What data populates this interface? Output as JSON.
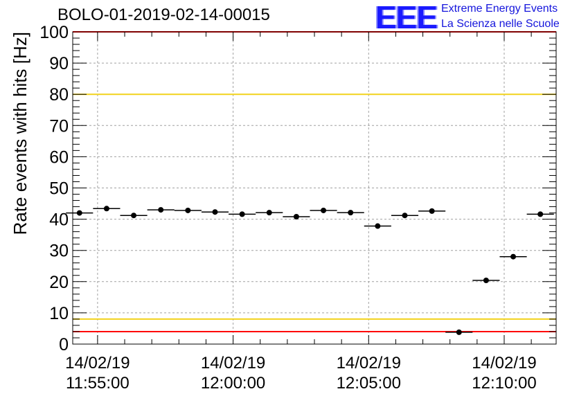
{
  "title": "BOLO-01-2019-02-14-00015",
  "logo": {
    "mark": "EEE",
    "line1": "Extreme Energy Events",
    "line2": "La Scienza nelle Scuole"
  },
  "colors": {
    "axis": "#000000",
    "grid": "#a0a0a0",
    "marker": "#000000",
    "red_limit": "#ff0000",
    "yellow_limit": "#f2d21b",
    "logo": "#1a1aff"
  },
  "chart_data": {
    "type": "scatter",
    "title": "BOLO-01-2019-02-14-00015",
    "ylabel": "Rate events with hits [Hz]",
    "xlabel": "",
    "ylim": [
      0,
      100
    ],
    "yticks": [
      0,
      10,
      20,
      30,
      40,
      50,
      60,
      70,
      80,
      90,
      100
    ],
    "xlim": [
      "11:54:05",
      "12:11:55"
    ],
    "xticks": [
      {
        "date": "14/02/19",
        "time": "11:55:00"
      },
      {
        "date": "14/02/19",
        "time": "12:00:00"
      },
      {
        "date": "14/02/19",
        "time": "12:05:00"
      },
      {
        "date": "14/02/19",
        "time": "12:10:00"
      }
    ],
    "grid": true,
    "bin_width_seconds": 60,
    "x": [
      "11:54:20",
      "11:55:20",
      "11:56:20",
      "11:57:20",
      "11:58:20",
      "11:59:20",
      "12:00:20",
      "12:01:20",
      "12:02:20",
      "12:03:20",
      "12:04:20",
      "12:05:20",
      "12:06:20",
      "12:07:20",
      "12:08:20",
      "12:09:20",
      "12:10:20",
      "12:11:20"
    ],
    "y": [
      42,
      43.4,
      41.2,
      43,
      42.8,
      42.3,
      41.6,
      42.1,
      40.8,
      42.8,
      42.1,
      37.8,
      41.2,
      42.6,
      3.8,
      20.4,
      28,
      41.6
    ],
    "reference_lines": [
      {
        "y": 100,
        "color": "red"
      },
      {
        "y": 80,
        "color": "yellow"
      },
      {
        "y": 8,
        "color": "yellow"
      },
      {
        "y": 4,
        "color": "red"
      }
    ]
  }
}
